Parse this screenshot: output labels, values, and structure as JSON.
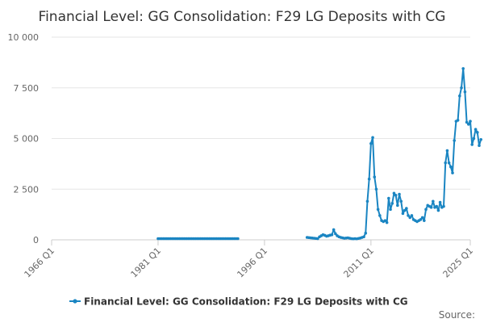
{
  "chart_data": {
    "type": "line",
    "title": "Financial Level: GG Consolidation: F29 LG Deposits with CG",
    "xlabel": "",
    "ylabel": "",
    "x_range": [
      1966.0,
      2025.0
    ],
    "ylim": [
      0,
      10000
    ],
    "y_ticks": [
      0,
      2500,
      5000,
      7500,
      10000
    ],
    "y_tick_labels": [
      "0",
      "2 500",
      "5 000",
      "7 500",
      "10 000"
    ],
    "x_ticks": [
      1966.0,
      1981.0,
      1996.0,
      2011.0,
      2025.0
    ],
    "x_tick_labels": [
      "1966 Q1",
      "1981 Q1",
      "1996 Q1",
      "2011 Q1",
      "2025 Q1"
    ],
    "grid": true,
    "legend_position": "bottom",
    "series": [
      {
        "name": "Financial Level: GG Consolidation: F29 LG Deposits with CG",
        "color": "#1a85c2",
        "segments": [
          [
            [
              1981.0,
              60
            ],
            [
              1981.25,
              60
            ],
            [
              1981.5,
              60
            ],
            [
              1981.75,
              60
            ],
            [
              1982.0,
              60
            ],
            [
              1982.25,
              60
            ],
            [
              1982.5,
              60
            ],
            [
              1982.75,
              60
            ],
            [
              1983.0,
              60
            ],
            [
              1983.25,
              60
            ],
            [
              1983.5,
              60
            ],
            [
              1983.75,
              60
            ],
            [
              1984.0,
              60
            ],
            [
              1984.25,
              60
            ],
            [
              1984.5,
              60
            ],
            [
              1984.75,
              60
            ],
            [
              1985.0,
              60
            ],
            [
              1985.25,
              60
            ],
            [
              1985.5,
              60
            ],
            [
              1985.75,
              60
            ],
            [
              1986.0,
              60
            ],
            [
              1986.25,
              60
            ],
            [
              1986.5,
              60
            ],
            [
              1986.75,
              60
            ],
            [
              1987.0,
              60
            ],
            [
              1987.25,
              60
            ],
            [
              1987.5,
              60
            ],
            [
              1987.75,
              60
            ],
            [
              1988.0,
              60
            ],
            [
              1988.25,
              60
            ],
            [
              1988.5,
              60
            ],
            [
              1988.75,
              60
            ],
            [
              1989.0,
              60
            ],
            [
              1989.25,
              60
            ],
            [
              1989.5,
              60
            ],
            [
              1989.75,
              60
            ],
            [
              1990.0,
              60
            ],
            [
              1990.25,
              60
            ],
            [
              1990.5,
              60
            ],
            [
              1990.75,
              60
            ],
            [
              1991.0,
              60
            ],
            [
              1991.25,
              60
            ],
            [
              1991.5,
              60
            ],
            [
              1991.75,
              60
            ],
            [
              1992.0,
              60
            ],
            [
              1992.25,
              60
            ]
          ],
          [
            [
              2002.0,
              120
            ],
            [
              2002.25,
              110
            ],
            [
              2002.5,
              100
            ],
            [
              2002.75,
              90
            ],
            [
              2003.0,
              80
            ],
            [
              2003.25,
              70
            ],
            [
              2003.5,
              60
            ],
            [
              2003.75,
              150
            ],
            [
              2004.0,
              200
            ],
            [
              2004.25,
              250
            ],
            [
              2004.5,
              220
            ],
            [
              2004.75,
              180
            ],
            [
              2005.0,
              200
            ],
            [
              2005.25,
              230
            ],
            [
              2005.5,
              250
            ],
            [
              2005.75,
              500
            ],
            [
              2006.0,
              300
            ],
            [
              2006.25,
              200
            ],
            [
              2006.5,
              150
            ],
            [
              2006.75,
              120
            ],
            [
              2007.0,
              100
            ],
            [
              2007.25,
              80
            ],
            [
              2007.5,
              90
            ],
            [
              2007.75,
              100
            ],
            [
              2008.0,
              80
            ],
            [
              2008.25,
              60
            ],
            [
              2008.5,
              50
            ],
            [
              2008.75,
              60
            ],
            [
              2009.0,
              50
            ],
            [
              2009.25,
              70
            ],
            [
              2009.5,
              90
            ],
            [
              2009.75,
              120
            ],
            [
              2010.0,
              150
            ],
            [
              2010.25,
              330
            ],
            [
              2010.5,
              1900
            ],
            [
              2010.75,
              3000
            ],
            [
              2011.0,
              4750
            ],
            [
              2011.25,
              5050
            ],
            [
              2011.5,
              3100
            ],
            [
              2011.75,
              2500
            ],
            [
              2012.0,
              1500
            ],
            [
              2012.25,
              1200
            ],
            [
              2012.5,
              950
            ],
            [
              2012.75,
              900
            ],
            [
              2013.0,
              950
            ],
            [
              2013.25,
              850
            ],
            [
              2013.5,
              2050
            ],
            [
              2013.75,
              1500
            ],
            [
              2014.0,
              1800
            ],
            [
              2014.25,
              2300
            ],
            [
              2014.5,
              2200
            ],
            [
              2014.75,
              1700
            ],
            [
              2015.0,
              2250
            ],
            [
              2015.25,
              1900
            ],
            [
              2015.5,
              1300
            ],
            [
              2015.75,
              1450
            ],
            [
              2016.0,
              1550
            ],
            [
              2016.25,
              1200
            ],
            [
              2016.5,
              1100
            ],
            [
              2016.75,
              1200
            ],
            [
              2017.0,
              1000
            ],
            [
              2017.25,
              950
            ],
            [
              2017.5,
              900
            ],
            [
              2017.75,
              950
            ],
            [
              2018.0,
              1000
            ],
            [
              2018.25,
              1100
            ],
            [
              2018.5,
              950
            ],
            [
              2018.75,
              1500
            ],
            [
              2019.0,
              1700
            ],
            [
              2019.25,
              1650
            ],
            [
              2019.5,
              1600
            ],
            [
              2019.75,
              1900
            ],
            [
              2020.0,
              1600
            ],
            [
              2020.25,
              1650
            ],
            [
              2020.5,
              1450
            ],
            [
              2020.75,
              1850
            ],
            [
              2021.0,
              1600
            ],
            [
              2021.25,
              1650
            ],
            [
              2021.5,
              3800
            ],
            [
              2021.75,
              4400
            ],
            [
              2022.0,
              3800
            ],
            [
              2022.25,
              3600
            ],
            [
              2022.5,
              3300
            ],
            [
              2022.75,
              4900
            ],
            [
              2023.0,
              5850
            ],
            [
              2023.25,
              5900
            ],
            [
              2023.5,
              7100
            ],
            [
              2023.75,
              7500
            ],
            [
              2024.0,
              8450
            ],
            [
              2024.25,
              7300
            ],
            [
              2024.5,
              5800
            ],
            [
              2024.75,
              5700
            ],
            [
              2025.0,
              5850
            ],
            [
              2025.25,
              4700
            ],
            [
              2025.5,
              5000
            ],
            [
              2025.75,
              5450
            ],
            [
              2026.0,
              5300
            ],
            [
              2026.25,
              4650
            ],
            [
              2026.5,
              4950
            ]
          ]
        ]
      }
    ]
  },
  "source_label": "Source:"
}
